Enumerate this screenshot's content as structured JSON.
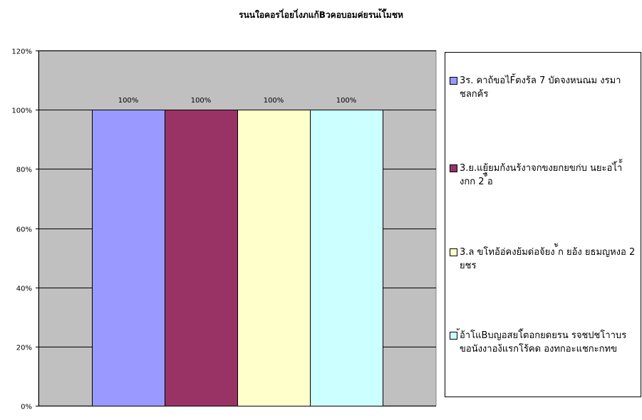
{
  "chart_data": {
    "type": "bar",
    "title": "รนนใอคอรไ่อยไ่งภแก้Bวคอบอมค่ยรนเ้โ้มชห",
    "xlabel": "",
    "ylabel": "",
    "ylim": [
      0,
      120
    ],
    "yticks": [
      "0%",
      "20%",
      "40%",
      "60%",
      "80%",
      "100%",
      "120%"
    ],
    "grid": true,
    "legend_position": "right",
    "plot_background": "#c0c0c0",
    "series": [
      {
        "name": "3ร. คาถ้ขอไF้ตงร้ล 7 บัดจงหนณม งรมาชลกค้ร",
        "value": 100,
        "data_label": "100%",
        "color": "#9999ff"
      },
      {
        "name": "3.ย.แย้ยมก้งนร้งาจกขงยกยขก่บ นยะอไ้า้้งกก 2 ้ือ",
        "value": 100,
        "data_label": "100%",
        "color": "#993366"
      },
      {
        "name": "3.ล ขโทอ้อ่คงย้มด่อจ้ยง ้ัก ยอ้ง ยธมญหงอ 2 ยชร",
        "value": 100,
        "data_label": "100%",
        "color": "#ffffcc"
      },
      {
        "name": "้อ้าโแBบญอสยโ้ตอกยดยรน รจชปชโาาบรขอนังงาอง้แรกโร้คด องทกอะแชกะกทข",
        "value": 100,
        "data_label": "100%",
        "color": "#ccffff"
      }
    ]
  }
}
